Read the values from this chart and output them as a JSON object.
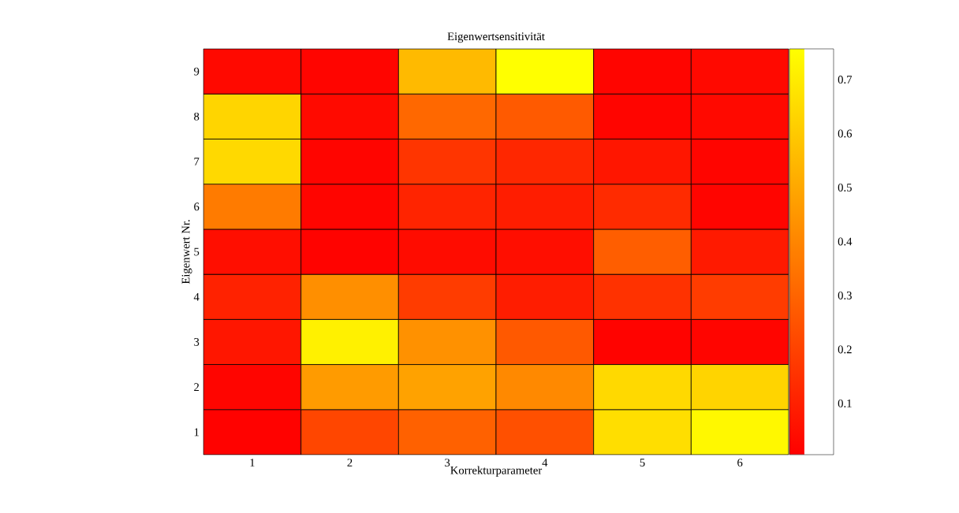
{
  "chart_data": {
    "type": "heatmap",
    "title": "Eigenwertsensitivität",
    "xlabel": "Korrekturparameter",
    "ylabel": "Eigenwert Nr.",
    "categories": [
      "1",
      "2",
      "3",
      "4",
      "5",
      "6"
    ],
    "y_categories": [
      "9",
      "8",
      "7",
      "6",
      "5",
      "4",
      "3",
      "2",
      "1"
    ],
    "cells": [
      [
        0.03,
        0.02,
        0.55,
        0.757,
        0.02,
        0.03
      ],
      [
        0.63,
        0.035,
        0.31,
        0.27,
        0.02,
        0.03
      ],
      [
        0.64,
        0.02,
        0.16,
        0.12,
        0.07,
        0.02
      ],
      [
        0.365,
        0.02,
        0.11,
        0.09,
        0.13,
        0.02
      ],
      [
        0.045,
        0.015,
        0.04,
        0.045,
        0.28,
        0.08
      ],
      [
        0.105,
        0.425,
        0.18,
        0.09,
        0.15,
        0.18
      ],
      [
        0.07,
        0.71,
        0.43,
        0.265,
        0.015,
        0.02
      ],
      [
        0.02,
        0.46,
        0.48,
        0.405,
        0.64,
        0.625
      ],
      [
        0.01,
        0.21,
        0.29,
        0.24,
        0.655,
        0.73
      ]
    ],
    "clim": [
      0.005,
      0.757
    ],
    "cticks": [
      0.1,
      0.2,
      0.3,
      0.4,
      0.5,
      0.6,
      0.7
    ]
  }
}
